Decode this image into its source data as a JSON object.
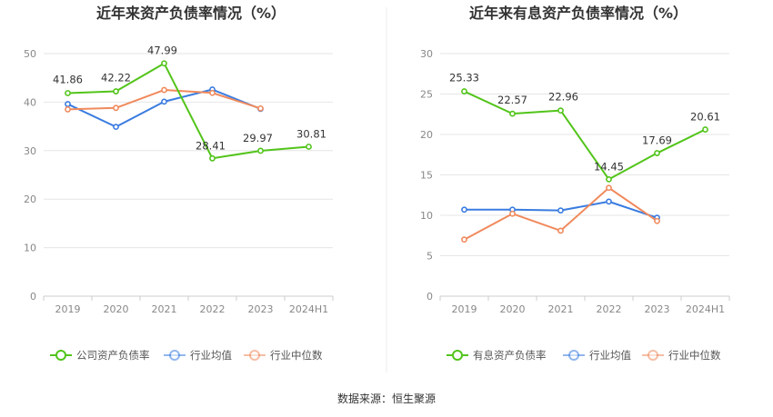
{
  "source": "数据来源：恒生聚源",
  "colors": {
    "company": "#52c41a",
    "industry_avg": "#3a7ce0",
    "industry_median": "#f08a5d"
  },
  "chart_data": [
    {
      "type": "line",
      "title": "近年来资产负债率情况（%）",
      "categories": [
        "2019",
        "2020",
        "2021",
        "2022",
        "2023",
        "2024H1"
      ],
      "ylim": [
        0,
        50
      ],
      "yticks": [
        0,
        10,
        20,
        30,
        40,
        50
      ],
      "grid": true,
      "legend_position": "bottom",
      "series": [
        {
          "name": "公司资产负债率",
          "color": "#52c41a",
          "values": [
            41.86,
            42.22,
            47.99,
            28.41,
            29.97,
            30.81
          ],
          "labels": [
            "41.86",
            "42.22",
            "47.99",
            "28.41",
            "29.97",
            "30.81"
          ]
        },
        {
          "name": "行业均值",
          "color": "#3a7ce0",
          "values": [
            39.6,
            34.9,
            40.1,
            42.6,
            38.6,
            null
          ]
        },
        {
          "name": "行业中位数",
          "color": "#f08a5d",
          "values": [
            38.5,
            38.8,
            42.5,
            41.9,
            38.7,
            null
          ]
        }
      ]
    },
    {
      "type": "line",
      "title": "近年来有息资产负债率情况（%）",
      "categories": [
        "2019",
        "2020",
        "2021",
        "2022",
        "2023",
        "2024H1"
      ],
      "ylim": [
        0,
        30
      ],
      "yticks": [
        0,
        5,
        10,
        15,
        20,
        25,
        30
      ],
      "grid": true,
      "legend_position": "bottom",
      "series": [
        {
          "name": "有息资产负债率",
          "color": "#52c41a",
          "values": [
            25.33,
            22.57,
            22.96,
            14.45,
            17.69,
            20.61
          ],
          "labels": [
            "25.33",
            "22.57",
            "22.96",
            "14.45",
            "17.69",
            "20.61"
          ]
        },
        {
          "name": "行业均值",
          "color": "#3a7ce0",
          "values": [
            10.7,
            10.7,
            10.6,
            11.7,
            9.7,
            null
          ]
        },
        {
          "name": "行业中位数",
          "color": "#f08a5d",
          "values": [
            7.0,
            10.2,
            8.1,
            13.4,
            9.3,
            null
          ]
        }
      ]
    }
  ]
}
